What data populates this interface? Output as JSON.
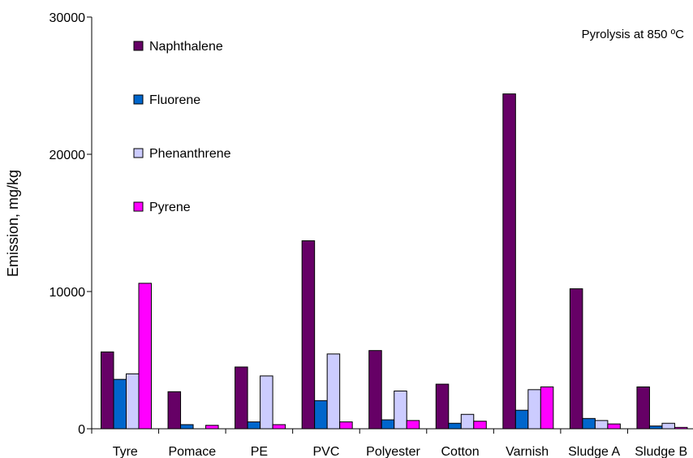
{
  "chart_data": {
    "type": "bar",
    "title": "",
    "annotation": "Pyrolysis at 850 ºC",
    "xlabel": "",
    "ylabel": "Emission, mg/kg",
    "ylim": [
      0,
      30000
    ],
    "yticks": [
      0,
      10000,
      20000,
      30000
    ],
    "ytick_labels": [
      "0",
      "10000",
      "20000",
      "30000"
    ],
    "grid": false,
    "legend_position": "top-left",
    "categories": [
      "Tyre",
      "Pomace",
      "PE",
      "PVC",
      "Polyester",
      "Cotton",
      "Varnish",
      "Sludge A",
      "Sludge B"
    ],
    "series": [
      {
        "name": "Naphthalene",
        "color": "#660066",
        "values": [
          5600,
          2700,
          4500,
          13700,
          5700,
          3250,
          24400,
          10200,
          3050
        ]
      },
      {
        "name": "Fluorene",
        "color": "#0066cc",
        "values": [
          3600,
          300,
          500,
          2050,
          650,
          400,
          1350,
          750,
          200
        ]
      },
      {
        "name": "Phenanthrene",
        "color": "#ccccff",
        "values": [
          4000,
          0,
          3850,
          5450,
          2750,
          1050,
          2850,
          600,
          400
        ]
      },
      {
        "name": "Pyrene",
        "color": "#ff00ff",
        "values": [
          10600,
          250,
          300,
          500,
          600,
          550,
          3050,
          350,
          100
        ]
      }
    ]
  }
}
